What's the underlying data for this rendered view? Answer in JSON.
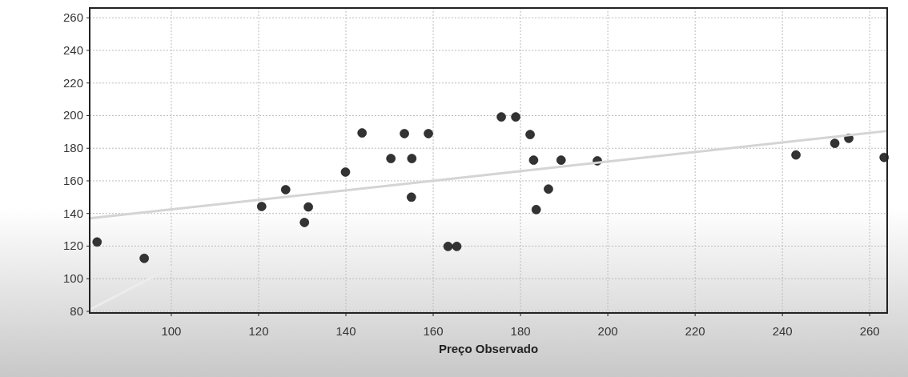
{
  "chart_data": {
    "type": "scatter",
    "xlabel": "Preço Observado",
    "xlim": [
      81.3,
      264
    ],
    "ylim": [
      79,
      266
    ],
    "xticks": [
      100,
      120,
      140,
      160,
      180,
      200,
      220,
      240,
      260
    ],
    "yticks": [
      80,
      100,
      120,
      140,
      160,
      180,
      200,
      220,
      240,
      260
    ],
    "grid": true,
    "marker": "circle",
    "series": [
      {
        "color": "#333333",
        "x": [
          83,
          93.8,
          120.7,
          126.2,
          130.5,
          131.4,
          139.9,
          143.7,
          150.3,
          153.4,
          155.1,
          155,
          158.9,
          163.4,
          165.4,
          175.6,
          178.9,
          182.2,
          183,
          183.6,
          186.4,
          189.3,
          197.6,
          243.1,
          252,
          255.2,
          263.3
        ],
        "values": [
          122.5,
          112.5,
          144.3,
          154.6,
          134.5,
          144,
          165.4,
          189.4,
          173.7,
          189,
          173.7,
          150,
          189,
          119.8,
          119.8,
          199.2,
          199.2,
          188.4,
          172.7,
          142.4,
          155,
          172.7,
          172.3,
          175.9,
          183,
          186.1,
          174.4
        ]
      },
      {
        "type": "line",
        "color": "#d4d4d4",
        "x": [
          81.3,
          264
        ],
        "values": [
          137,
          190.6
        ],
        "marker": "none"
      },
      {
        "type": "line",
        "color": "#ececec",
        "x": [
          81.3,
          100
        ],
        "values": [
          81,
          107
        ],
        "marker": "none"
      }
    ]
  }
}
